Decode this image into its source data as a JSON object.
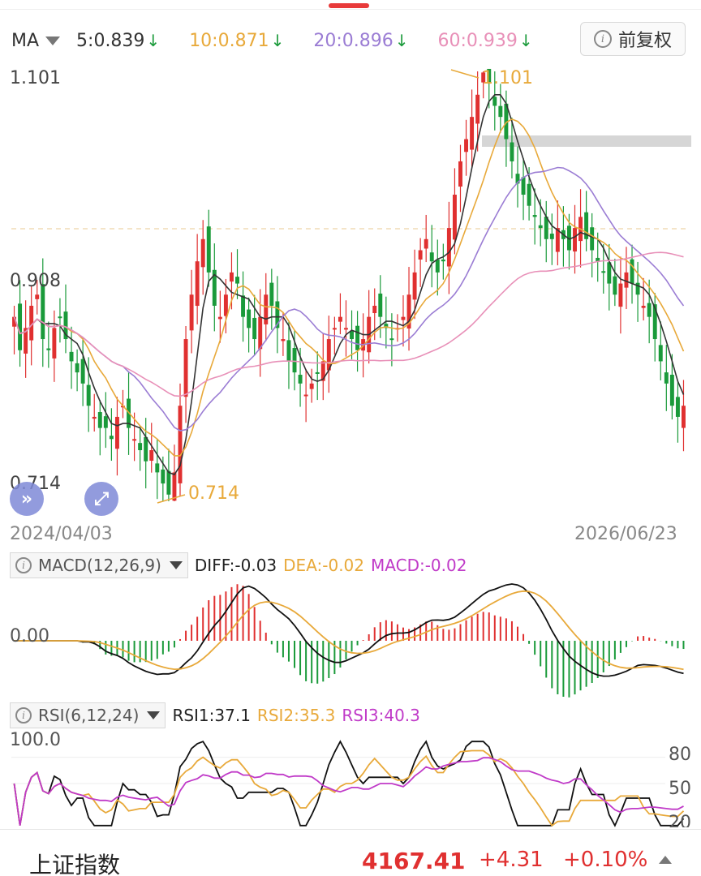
{
  "ma_header": {
    "label": "MA",
    "ma5": "5:0.839",
    "ma10": "10:0.871",
    "ma20": "20:0.896",
    "ma60": "60:0.939",
    "down_arrow": "↓",
    "colors": {
      "ma5": "#333333",
      "ma10": "#e8a93a",
      "ma20": "#9b7dd4",
      "ma60": "#e890b8"
    }
  },
  "adjust_button": {
    "icon": "info-icon",
    "label": "前复权"
  },
  "price_axis": {
    "high": "1.101",
    "mid": "0.908",
    "low": "0.714",
    "high_marker": "1.101",
    "low_marker": "0.714"
  },
  "dates": {
    "start": "2024/04/03",
    "end": "2026/06/23"
  },
  "macd": {
    "name": "MACD(12,26,9)",
    "diff": "DIFF:-0.03",
    "dea": "DEA:-0.02",
    "macd": "MACD:-0.02",
    "zero": "0.00"
  },
  "rsi": {
    "name": "RSI(6,12,24)",
    "rsi1": "RSI1:37.1",
    "rsi2": "RSI2:35.3",
    "rsi3": "RSI3:40.3",
    "top": "100.0",
    "lvl80": "80",
    "lvl50": "50",
    "lvl20": "20"
  },
  "footer": {
    "name": "上证指数",
    "price": "4167.41",
    "change": "+4.31",
    "pct": "+0.10%"
  },
  "colors": {
    "up": "#e03030",
    "down": "#1a9a3a",
    "accent_orange": "#e8a93a"
  },
  "chart_data": {
    "type": "line",
    "price_range": [
      0.714,
      1.101
    ],
    "close_series": [
      0.88,
      0.85,
      0.87,
      0.89,
      0.9,
      0.86,
      0.85,
      0.87,
      0.88,
      0.86,
      0.84,
      0.83,
      0.82,
      0.8,
      0.79,
      0.78,
      0.78,
      0.77,
      0.79,
      0.8,
      0.78,
      0.77,
      0.76,
      0.75,
      0.76,
      0.74,
      0.73,
      0.72,
      0.74,
      0.8,
      0.86,
      0.9,
      0.93,
      0.95,
      0.92,
      0.89,
      0.88,
      0.9,
      0.92,
      0.91,
      0.88,
      0.87,
      0.86,
      0.88,
      0.9,
      0.89,
      0.87,
      0.86,
      0.84,
      0.83,
      0.82,
      0.81,
      0.82,
      0.83,
      0.84,
      0.86,
      0.87,
      0.88,
      0.87,
      0.86,
      0.85,
      0.86,
      0.88,
      0.89,
      0.88,
      0.87,
      0.86,
      0.87,
      0.88,
      0.9,
      0.92,
      0.94,
      0.95,
      0.93,
      0.92,
      0.93,
      0.96,
      0.99,
      1.02,
      1.04,
      1.06,
      1.08,
      1.1,
      1.09,
      1.07,
      1.06,
      1.04,
      1.02,
      1.0,
      0.99,
      0.98,
      0.97,
      0.96,
      0.95,
      0.95,
      0.96,
      0.95,
      0.94,
      0.96,
      0.97,
      0.95,
      0.94,
      0.93,
      0.92,
      0.91,
      0.9,
      0.91,
      0.92,
      0.91,
      0.9,
      0.89,
      0.88,
      0.86,
      0.84,
      0.82,
      0.8,
      0.79,
      0.8
    ],
    "ma_lines": [
      "MA5",
      "MA10",
      "MA20",
      "MA60"
    ],
    "macd_zero": 0,
    "rsi_levels": [
      20,
      50,
      80,
      100
    ]
  }
}
